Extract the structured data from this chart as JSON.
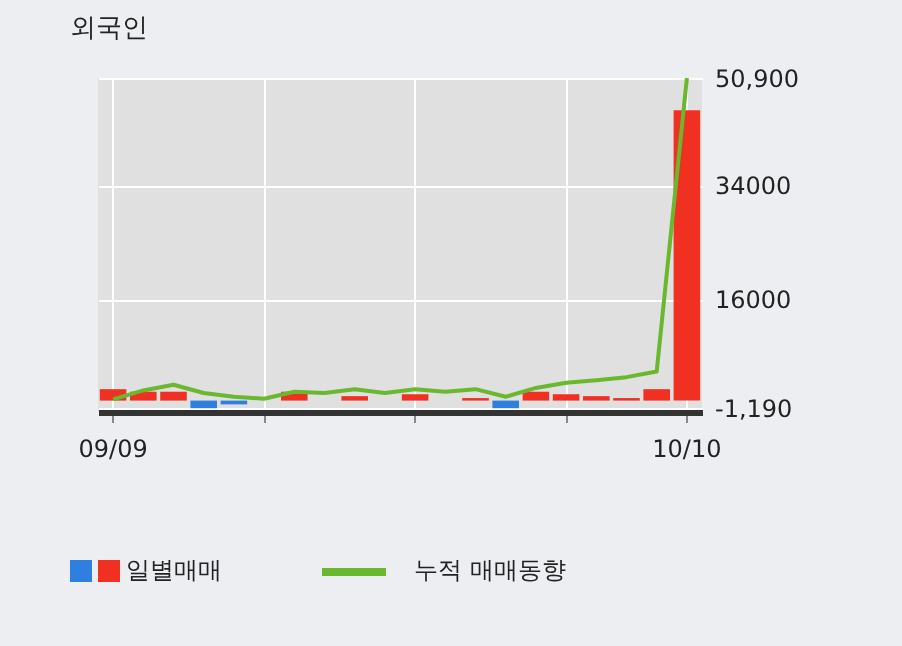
{
  "chart_data": {
    "type": "bar",
    "title": "외국인",
    "categories": [
      "09/09",
      null,
      null,
      null,
      null,
      null,
      null,
      null,
      null,
      null,
      null,
      null,
      null,
      null,
      null,
      null,
      null,
      null,
      null,
      "10/10"
    ],
    "series": [
      {
        "name": "일별매매",
        "colors": [
          "#f03020",
          "#f03020",
          "#f03020",
          "#2f7fe0",
          "#2f7fe0",
          "#f03020",
          "#f03020",
          "#f03020",
          "#f03020",
          "#f03020",
          "#f03020",
          "#f03020",
          "#f03020",
          "#2f7fe0",
          "#f03020",
          "#f03020",
          "#f03020",
          "#f03020",
          "#f03020",
          "#f03020"
        ],
        "values": [
          1800,
          1400,
          1400,
          -1200,
          -600,
          0,
          1400,
          0,
          700,
          0,
          1000,
          0,
          400,
          -1200,
          1400,
          1000,
          700,
          400,
          1800,
          45800
        ]
      },
      {
        "name": "누적 매매동향",
        "type": "line",
        "color": "#6ab82e",
        "values": [
          200,
          1600,
          2500,
          1200,
          600,
          300,
          1400,
          1200,
          1800,
          1200,
          1800,
          1400,
          1800,
          600,
          2000,
          2800,
          3200,
          3700,
          4600,
          50900
        ]
      }
    ],
    "ylim": [
      -1800,
      50900
    ],
    "yticks": [
      {
        "value": 50900,
        "label": "50,900"
      },
      34000,
      16000,
      {
        "value": -1190,
        "label": "-1,190"
      }
    ],
    "grid": true,
    "legend": "bottom"
  }
}
